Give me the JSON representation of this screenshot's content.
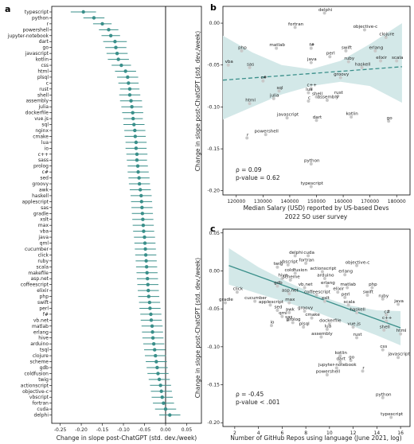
{
  "panels": {
    "a": {
      "panel_label": "a",
      "xlabel": "Change in slope post-ChatGPT (std. dev./week)",
      "xticks": [
        "-0.25",
        "-0.20",
        "-0.15",
        "-0.10",
        "-0.05",
        "0.00",
        "0.05"
      ],
      "xtick_values": [
        -0.25,
        -0.2,
        -0.15,
        -0.1,
        -0.05,
        0.0,
        0.05
      ],
      "xlim": [
        -0.27,
        0.085
      ]
    },
    "b": {
      "panel_label": "b",
      "ylabel": "Change in slope post-ChatGPT (std. dev./week)",
      "xlabel_line1": "Median Salary (USD) reported by US-based Devs",
      "xlabel_line2": "2022 SO user survey",
      "xticks": [
        "120000",
        "130000",
        "140000",
        "150000",
        "160000",
        "170000",
        "180000"
      ],
      "yticks": [
        "0.00",
        "-0.05",
        "-0.10",
        "-0.15",
        "-0.20"
      ],
      "stat_rho": "ρ = 0.09",
      "stat_p": "p-value = 0.62"
    },
    "c": {
      "panel_label": "c",
      "ylabel": "Change in slope post-ChatGPT (std. dev./week)",
      "xlabel": "Number of GitHub Repos using language (June 2021, log)",
      "xticks": [
        "2",
        "4",
        "6",
        "8",
        "10",
        "12",
        "14",
        "16"
      ],
      "yticks": [
        "0.05",
        "0.00",
        "-0.05",
        "-0.10",
        "-0.15",
        "-0.20"
      ],
      "stat_rho": "ρ = -0.45",
      "stat_p": "p-value < .001"
    }
  },
  "colors": {
    "teal": "#3a8f8a",
    "band": "#d3e8e8",
    "point": "#c8c8c8",
    "axis": "#000000"
  },
  "chart_data": [
    {
      "type": "scatter",
      "panel": "a",
      "xlabel": "Change in slope post-ChatGPT (std. dev./week)",
      "xlim": [
        -0.27,
        0.085
      ],
      "categories": [
        "typescript",
        "python",
        "r",
        "powershell",
        "jupyter-notebook",
        "dart",
        "go",
        "javascript",
        "kotlin",
        "css",
        "html",
        "plsql",
        "c",
        "rust",
        "shell",
        "assembly",
        "julia",
        "dockerfile",
        "vue.js",
        "sql",
        "nginx",
        "cmake",
        "lua",
        "io",
        "c++",
        "sass",
        "prolog",
        "c#",
        "sed",
        "groovy",
        "awk",
        "haskell",
        "applescript",
        "sas",
        "gradle",
        "xslt",
        "max",
        "vba",
        "java",
        "qml",
        "cucumber",
        "click",
        "ruby",
        "scala",
        "makefile",
        "asp.net",
        "coffeescript",
        "elixir",
        "php",
        "swift",
        "perl",
        "f#",
        "vb.net",
        "matlab",
        "erlang",
        "hive",
        "arduino",
        "tsql",
        "clojure",
        "scheme",
        "gdb",
        "coldfusion",
        "twig",
        "actionscript",
        "objective-c",
        "vbscript",
        "fortran",
        "cuda",
        "delphi"
      ],
      "values": [
        -0.195,
        -0.17,
        -0.15,
        -0.135,
        -0.13,
        -0.12,
        -0.118,
        -0.115,
        -0.112,
        -0.105,
        -0.095,
        -0.09,
        -0.088,
        -0.085,
        -0.085,
        -0.082,
        -0.08,
        -0.078,
        -0.077,
        -0.075,
        -0.073,
        -0.072,
        -0.07,
        -0.07,
        -0.068,
        -0.068,
        -0.066,
        -0.065,
        -0.063,
        -0.062,
        -0.06,
        -0.058,
        -0.057,
        -0.056,
        -0.055,
        -0.054,
        -0.053,
        -0.052,
        -0.05,
        -0.049,
        -0.048,
        -0.047,
        -0.046,
        -0.045,
        -0.044,
        -0.043,
        -0.042,
        -0.041,
        -0.04,
        -0.038,
        -0.037,
        -0.035,
        -0.034,
        -0.032,
        -0.031,
        -0.03,
        -0.028,
        -0.026,
        -0.024,
        -0.022,
        -0.02,
        -0.018,
        -0.015,
        -0.012,
        -0.01,
        -0.008,
        -0.005,
        0.0,
        0.01
      ],
      "err_low": [
        -0.225,
        -0.195,
        -0.172,
        -0.158,
        -0.152,
        -0.148,
        -0.143,
        -0.14,
        -0.137,
        -0.128,
        -0.12,
        -0.115,
        -0.112,
        -0.108,
        -0.11,
        -0.108,
        -0.105,
        -0.103,
        -0.1,
        -0.1,
        -0.098,
        -0.097,
        -0.095,
        -0.095,
        -0.093,
        -0.092,
        -0.09,
        -0.09,
        -0.088,
        -0.087,
        -0.085,
        -0.083,
        -0.082,
        -0.081,
        -0.08,
        -0.079,
        -0.078,
        -0.077,
        -0.075,
        -0.074,
        -0.073,
        -0.072,
        -0.071,
        -0.07,
        -0.069,
        -0.068,
        -0.067,
        -0.066,
        -0.065,
        -0.063,
        -0.062,
        -0.06,
        -0.059,
        -0.057,
        -0.056,
        -0.055,
        -0.053,
        -0.051,
        -0.049,
        -0.047,
        -0.045,
        -0.043,
        -0.04,
        -0.037,
        -0.035,
        -0.033,
        -0.03,
        -0.025,
        -0.015
      ],
      "err_high": [
        -0.165,
        -0.145,
        -0.128,
        -0.112,
        -0.108,
        -0.092,
        -0.093,
        -0.09,
        -0.087,
        -0.082,
        -0.07,
        -0.065,
        -0.064,
        -0.062,
        -0.06,
        -0.056,
        -0.055,
        -0.053,
        -0.054,
        -0.05,
        -0.048,
        -0.047,
        -0.045,
        -0.045,
        -0.043,
        -0.044,
        -0.042,
        -0.04,
        -0.038,
        -0.037,
        -0.035,
        -0.033,
        -0.032,
        -0.031,
        -0.03,
        -0.029,
        -0.028,
        -0.027,
        -0.025,
        -0.024,
        -0.023,
        -0.022,
        -0.021,
        -0.02,
        -0.019,
        -0.018,
        -0.017,
        -0.016,
        -0.015,
        -0.013,
        -0.012,
        -0.01,
        -0.009,
        -0.007,
        -0.006,
        -0.005,
        -0.003,
        -0.001,
        0.001,
        0.003,
        0.005,
        0.007,
        0.01,
        0.013,
        0.015,
        0.017,
        0.02,
        0.025,
        0.035
      ]
    },
    {
      "type": "scatter",
      "panel": "b",
      "xlabel": "Median Salary (USD) reported by US-based Devs 2022 SO user survey",
      "ylabel": "Change in slope post-ChatGPT (std. dev./week)",
      "xlim": [
        115000,
        185000
      ],
      "ylim": [
        -0.205,
        0.02
      ],
      "regression": {
        "x": [
          115000,
          182000
        ],
        "y": [
          -0.068,
          -0.052
        ]
      },
      "band_upper": [
        -0.015,
        -0.035,
        -0.05,
        -0.055,
        -0.045,
        -0.025,
        0.0
      ],
      "band_lower": [
        -0.115,
        -0.1,
        -0.085,
        -0.075,
        -0.07,
        -0.075,
        -0.095
      ],
      "band_x": [
        115000,
        126000,
        137000,
        148000,
        159000,
        170000,
        182000
      ],
      "points": [
        {
          "label": "delphi",
          "x": 153000,
          "y": 0.012
        },
        {
          "label": "fortran",
          "x": 142000,
          "y": -0.005
        },
        {
          "label": "objective-c",
          "x": 168000,
          "y": -0.008
        },
        {
          "label": "clojure",
          "x": 176000,
          "y": -0.017
        },
        {
          "label": "php",
          "x": 122000,
          "y": -0.033
        },
        {
          "label": "matlab",
          "x": 135000,
          "y": -0.03
        },
        {
          "label": "f#",
          "x": 148000,
          "y": -0.03
        },
        {
          "label": "swift",
          "x": 161000,
          "y": -0.033
        },
        {
          "label": "erlang",
          "x": 172000,
          "y": -0.033
        },
        {
          "label": "perl",
          "x": 155000,
          "y": -0.04
        },
        {
          "label": "scala",
          "x": 180000,
          "y": -0.045
        },
        {
          "label": "vba",
          "x": 117000,
          "y": -0.05
        },
        {
          "label": "sas",
          "x": 125000,
          "y": -0.053
        },
        {
          "label": "java",
          "x": 148000,
          "y": -0.047
        },
        {
          "label": "ruby",
          "x": 162000,
          "y": -0.046
        },
        {
          "label": "elixir",
          "x": 174000,
          "y": -0.045
        },
        {
          "label": "haskell",
          "x": 167000,
          "y": -0.053
        },
        {
          "label": "c#",
          "x": 130000,
          "y": -0.069
        },
        {
          "label": "groovy",
          "x": 159000,
          "y": -0.065
        },
        {
          "label": "sql",
          "x": 136000,
          "y": -0.081
        },
        {
          "label": "c++",
          "x": 148000,
          "y": -0.078
        },
        {
          "label": "julia",
          "x": 134000,
          "y": -0.09
        },
        {
          "label": "lua",
          "x": 147000,
          "y": -0.083
        },
        {
          "label": "shell",
          "x": 150000,
          "y": -0.088
        },
        {
          "label": "c",
          "x": 147000,
          "y": -0.093
        },
        {
          "label": "rust",
          "x": 158000,
          "y": -0.087
        },
        {
          "label": "assembly",
          "x": 154000,
          "y": -0.092
        },
        {
          "label": "html",
          "x": 125000,
          "y": -0.096
        },
        {
          "label": "javascript",
          "x": 139000,
          "y": -0.113
        },
        {
          "label": "dart",
          "x": 150000,
          "y": -0.116
        },
        {
          "label": "kotlin",
          "x": 163000,
          "y": -0.112
        },
        {
          "label": "go",
          "x": 177000,
          "y": -0.117
        },
        {
          "label": "r",
          "x": 124000,
          "y": -0.137
        },
        {
          "label": "powershell",
          "x": 131000,
          "y": -0.133
        },
        {
          "label": "python",
          "x": 148000,
          "y": -0.168
        },
        {
          "label": "typescript",
          "x": 148000,
          "y": -0.195
        }
      ],
      "stats": {
        "rho": 0.09,
        "p": 0.62
      }
    },
    {
      "type": "scatter",
      "panel": "c",
      "xlabel": "Number of GitHub Repos using language (June 2021, log)",
      "ylabel": "Change in slope post-ChatGPT (std. dev./week)",
      "xlim": [
        1,
        16.8
      ],
      "ylim": [
        -0.205,
        0.055
      ],
      "regression": {
        "x": [
          1.5,
          16.0
        ],
        "y": [
          0.007,
          -0.075
        ]
      },
      "band_upper": [
        0.03,
        0.005,
        -0.015,
        -0.032,
        -0.045,
        -0.052,
        -0.053
      ],
      "band_lower": [
        -0.018,
        -0.03,
        -0.042,
        -0.055,
        -0.07,
        -0.085,
        -0.098
      ],
      "band_x": [
        1.5,
        4,
        6.5,
        9,
        11.5,
        14,
        16
      ],
      "points": [
        {
          "label": "delphi",
          "x": 7.1,
          "y": 0.02
        },
        {
          "label": "cuda",
          "x": 8.2,
          "y": 0.02
        },
        {
          "label": "vbscript",
          "x": 6.5,
          "y": 0.008
        },
        {
          "label": "fortran",
          "x": 8.0,
          "y": 0.01
        },
        {
          "label": "objective-c",
          "x": 12.3,
          "y": 0.007
        },
        {
          "label": "twig",
          "x": 5.6,
          "y": 0.005
        },
        {
          "label": "coldfusion",
          "x": 7.1,
          "y": -0.003
        },
        {
          "label": "actionscript",
          "x": 9.4,
          "y": -0.001
        },
        {
          "label": "erlang",
          "x": 11.3,
          "y": -0.005
        },
        {
          "label": "hive",
          "x": 6.0,
          "y": -0.01
        },
        {
          "label": "scheme",
          "x": 6.7,
          "y": -0.012
        },
        {
          "label": "arduino",
          "x": 9.6,
          "y": -0.01
        },
        {
          "label": "gdb",
          "x": 5.6,
          "y": -0.02
        },
        {
          "label": "vb.net",
          "x": 7.9,
          "y": -0.022
        },
        {
          "label": "erlang",
          "x": 9.8,
          "y": -0.02
        },
        {
          "label": "matlab",
          "x": 11.5,
          "y": -0.022
        },
        {
          "label": "php",
          "x": 13.6,
          "y": -0.022
        },
        {
          "label": "click",
          "x": 2.2,
          "y": -0.028
        },
        {
          "label": "asp.net",
          "x": 6.6,
          "y": -0.03
        },
        {
          "label": "coffeescript",
          "x": 8.9,
          "y": -0.032
        },
        {
          "label": "elixir",
          "x": 10.7,
          "y": -0.028
        },
        {
          "label": "perl",
          "x": 11.3,
          "y": -0.035
        },
        {
          "label": "swift",
          "x": 13.2,
          "y": -0.032
        },
        {
          "label": "ruby",
          "x": 14.5,
          "y": -0.037
        },
        {
          "label": "gradle",
          "x": 1.2,
          "y": -0.042
        },
        {
          "label": "cucumber",
          "x": 3.7,
          "y": -0.04
        },
        {
          "label": "applescript",
          "x": 5.0,
          "y": -0.045
        },
        {
          "label": "max",
          "x": 6.6,
          "y": -0.042
        },
        {
          "label": "xslt",
          "x": 9.6,
          "y": -0.04
        },
        {
          "label": "scala",
          "x": 11.6,
          "y": -0.045
        },
        {
          "label": "java",
          "x": 15.8,
          "y": -0.044
        },
        {
          "label": "sed",
          "x": 5.6,
          "y": -0.052
        },
        {
          "label": "awk",
          "x": 6.6,
          "y": -0.055
        },
        {
          "label": "groovy",
          "x": 7.9,
          "y": -0.053
        },
        {
          "label": "haskell",
          "x": 12.3,
          "y": -0.055
        },
        {
          "label": "c#",
          "x": 14.8,
          "y": -0.058
        },
        {
          "label": "qml",
          "x": 6.0,
          "y": -0.06
        },
        {
          "label": "sas",
          "x": 6.5,
          "y": -0.065
        },
        {
          "label": "cmake",
          "x": 8.5,
          "y": -0.062
        },
        {
          "label": "c++",
          "x": 14.8,
          "y": -0.066
        },
        {
          "label": "io",
          "x": 5.1,
          "y": -0.072
        },
        {
          "label": "prolog",
          "x": 6.9,
          "y": -0.068
        },
        {
          "label": "plsql",
          "x": 7.8,
          "y": -0.074
        },
        {
          "label": "dockerfile",
          "x": 10.0,
          "y": -0.07
        },
        {
          "label": "vue.js",
          "x": 12.0,
          "y": -0.074
        },
        {
          "label": "lua",
          "x": 9.8,
          "y": -0.077
        },
        {
          "label": "shell",
          "x": 14.6,
          "y": -0.078
        },
        {
          "label": "html",
          "x": 16.0,
          "y": -0.083
        },
        {
          "label": "assembly",
          "x": 9.3,
          "y": -0.087
        },
        {
          "label": "rust",
          "x": 12.3,
          "y": -0.088
        },
        {
          "label": "css",
          "x": 14.5,
          "y": -0.104
        },
        {
          "label": "javascript",
          "x": 15.8,
          "y": -0.114
        },
        {
          "label": "kotlin",
          "x": 10.9,
          "y": -0.112
        },
        {
          "label": "dart",
          "x": 10.9,
          "y": -0.12
        },
        {
          "label": "go",
          "x": 11.8,
          "y": -0.118
        },
        {
          "label": "jupyter-notebook",
          "x": 10.6,
          "y": -0.128
        },
        {
          "label": "r",
          "x": 12.8,
          "y": -0.132
        },
        {
          "label": "powershell",
          "x": 9.8,
          "y": -0.137
        },
        {
          "label": "python",
          "x": 14.5,
          "y": -0.167
        },
        {
          "label": "typescript",
          "x": 15.2,
          "y": -0.193
        }
      ],
      "stats": {
        "rho": -0.45,
        "p": "< .001"
      }
    }
  ]
}
